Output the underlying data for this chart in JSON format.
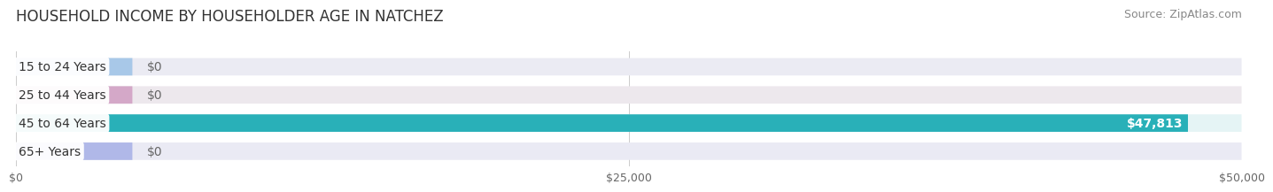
{
  "title": "HOUSEHOLD INCOME BY HOUSEHOLDER AGE IN NATCHEZ",
  "source": "Source: ZipAtlas.com",
  "categories": [
    "15 to 24 Years",
    "25 to 44 Years",
    "45 to 64 Years",
    "65+ Years"
  ],
  "values": [
    0,
    0,
    47813,
    0
  ],
  "bar_colors": [
    "#a8c8e8",
    "#d4a8c8",
    "#29b0b8",
    "#b0b8e8"
  ],
  "bar_bg_colors": [
    "#ebebf3",
    "#ede8ed",
    "#e5f4f5",
    "#eaeaf4"
  ],
  "xlim": [
    0,
    50000
  ],
  "xticks": [
    0,
    25000,
    50000
  ],
  "xticklabels": [
    "$0",
    "$25,000",
    "$50,000"
  ],
  "title_fontsize": 12,
  "source_fontsize": 9,
  "label_fontsize": 10,
  "bar_height": 0.62,
  "background_color": "#ffffff"
}
